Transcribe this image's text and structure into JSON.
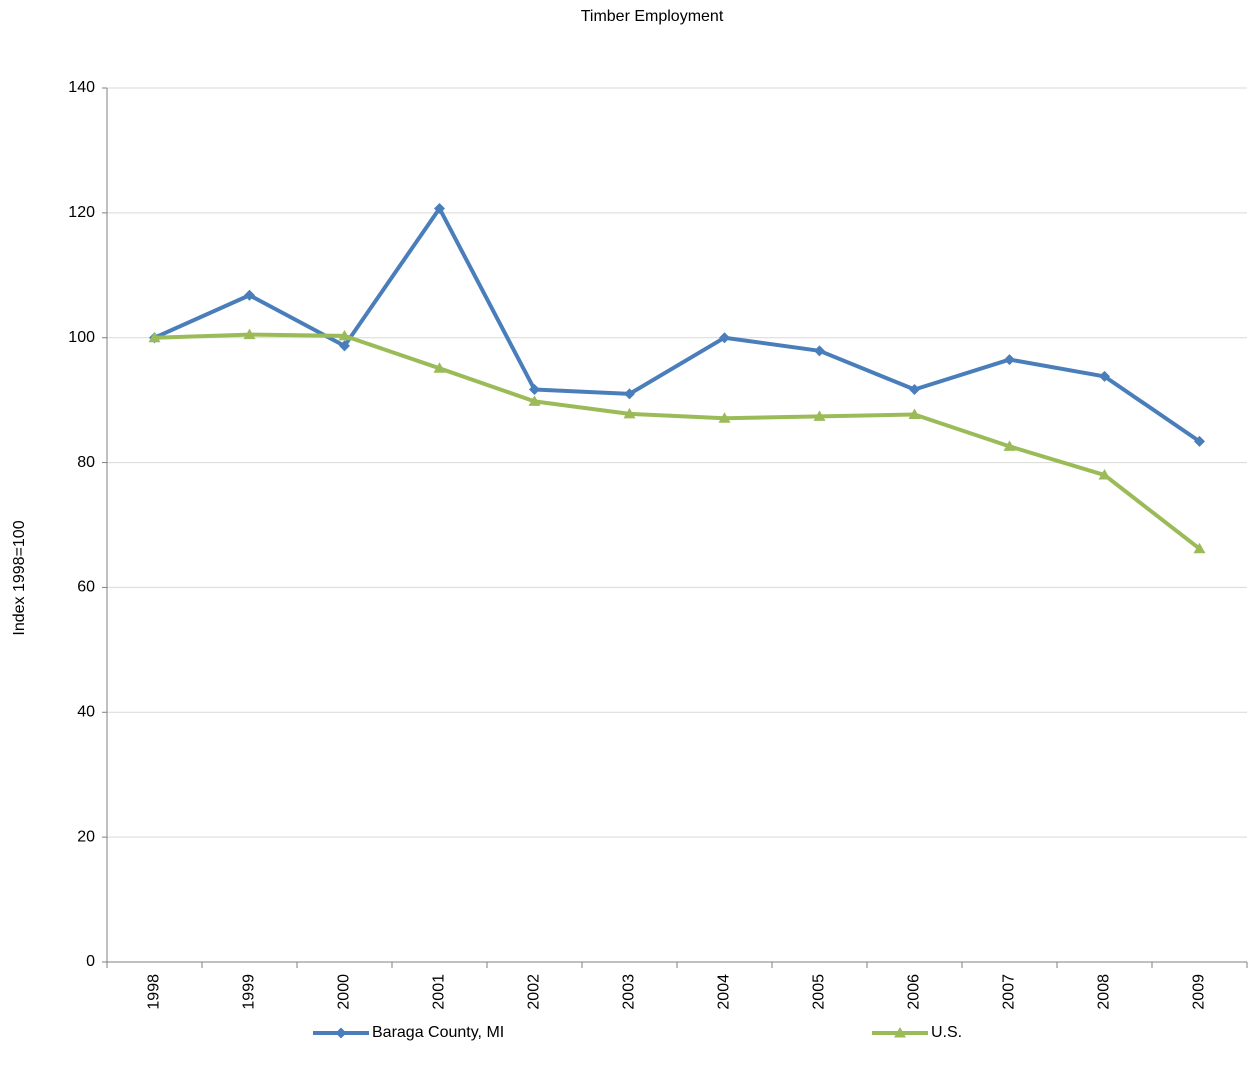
{
  "chart_data": {
    "type": "line",
    "title": "Timber Employment",
    "y_label": "Index 1998=100",
    "categories": [
      "1998",
      "1999",
      "2000",
      "2001",
      "2002",
      "2003",
      "2004",
      "2005",
      "2006",
      "2007",
      "2008",
      "2009"
    ],
    "series": [
      {
        "name": "Baraga County, MI",
        "color": "#4a7ebb",
        "marker": "diamond",
        "values": [
          100,
          106.8,
          98.7,
          120.7,
          91.7,
          91.0,
          100.0,
          97.9,
          91.7,
          96.5,
          93.8,
          83.4
        ]
      },
      {
        "name": "U.S.",
        "color": "#9bbb59",
        "marker": "triangle",
        "values": [
          100,
          100.5,
          100.3,
          95.1,
          89.8,
          87.8,
          87.1,
          87.4,
          87.7,
          82.6,
          78.0,
          66.2
        ]
      }
    ],
    "ylim": [
      0,
      140
    ],
    "yticks": [
      0,
      20,
      40,
      60,
      80,
      100,
      120,
      140
    ],
    "grid": true,
    "legend": "bottom"
  }
}
